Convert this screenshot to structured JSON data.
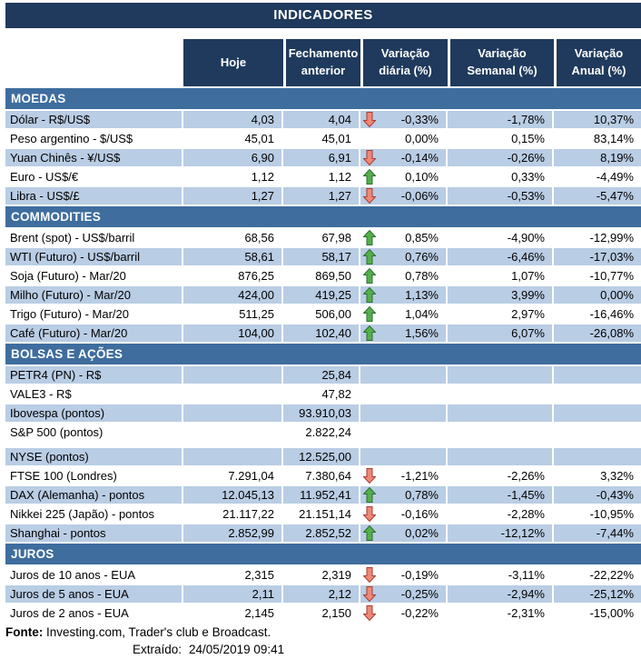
{
  "title": "INDICADORES",
  "chart_data": {
    "type": "table",
    "title": "INDICADORES",
    "columns": [
      "Hoje",
      "Fechamento anterior",
      "Variação diária (%)",
      "Variação Semanal (%)",
      "Variação Anual (%)"
    ],
    "sections": [
      {
        "name": "MOEDAS",
        "rows": [
          {
            "label": "Dólar - R$/US$",
            "hoje": "4,03",
            "fechamento": "4,04",
            "arrow": "down",
            "diaria": "-0,33%",
            "semanal": "-1,78%",
            "anual": "10,37%"
          },
          {
            "label": "Peso argentino - $/US$",
            "hoje": "45,01",
            "fechamento": "45,01",
            "arrow": "",
            "diaria": "0,00%",
            "semanal": "0,15%",
            "anual": "83,14%"
          },
          {
            "label": "Yuan Chinês - ¥/US$",
            "hoje": "6,90",
            "fechamento": "6,91",
            "arrow": "down",
            "diaria": "-0,14%",
            "semanal": "-0,26%",
            "anual": "8,19%"
          },
          {
            "label": "Euro - US$/€",
            "hoje": "1,12",
            "fechamento": "1,12",
            "arrow": "up",
            "diaria": "0,10%",
            "semanal": "0,33%",
            "anual": "-4,49%"
          },
          {
            "label": "Libra - US$/£",
            "hoje": "1,27",
            "fechamento": "1,27",
            "arrow": "down",
            "diaria": "-0,06%",
            "semanal": "-0,53%",
            "anual": "-5,47%"
          }
        ]
      },
      {
        "name": "COMMODITIES",
        "rows": [
          {
            "label": "Brent (spot) - US$/barril",
            "hoje": "68,56",
            "fechamento": "67,98",
            "arrow": "up",
            "diaria": "0,85%",
            "semanal": "-4,90%",
            "anual": "-12,99%"
          },
          {
            "label": "WTI (Futuro) - US$/barril",
            "hoje": "58,61",
            "fechamento": "58,17",
            "arrow": "up",
            "diaria": "0,76%",
            "semanal": "-6,46%",
            "anual": "-17,03%"
          },
          {
            "label": "Soja (Futuro) - Mar/20",
            "hoje": "876,25",
            "fechamento": "869,50",
            "arrow": "up",
            "diaria": "0,78%",
            "semanal": "1,07%",
            "anual": "-10,77%"
          },
          {
            "label": "Milho (Futuro) - Mar/20",
            "hoje": "424,00",
            "fechamento": "419,25",
            "arrow": "up",
            "diaria": "1,13%",
            "semanal": "3,99%",
            "anual": "0,00%"
          },
          {
            "label": "Trigo (Futuro) - Mar/20",
            "hoje": "511,25",
            "fechamento": "506,00",
            "arrow": "up",
            "diaria": "1,04%",
            "semanal": "2,97%",
            "anual": "-16,46%"
          },
          {
            "label": "Café (Futuro) - Mar/20",
            "hoje": "104,00",
            "fechamento": "102,40",
            "arrow": "up",
            "diaria": "1,56%",
            "semanal": "6,07%",
            "anual": "-26,08%"
          }
        ]
      },
      {
        "name": "BOLSAS E AÇÕES",
        "rows": [
          {
            "label": "PETR4 (PN) - R$",
            "hoje": "",
            "fechamento": "25,84",
            "arrow": "",
            "diaria": "",
            "semanal": "",
            "anual": ""
          },
          {
            "label": "VALE3 - R$",
            "hoje": "",
            "fechamento": "47,82",
            "arrow": "",
            "diaria": "",
            "semanal": "",
            "anual": ""
          },
          {
            "label": "Ibovespa (pontos)",
            "hoje": "",
            "fechamento": "93.910,03",
            "arrow": "",
            "diaria": "",
            "semanal": "",
            "anual": ""
          },
          {
            "label": "S&P 500 (pontos)",
            "hoje": "",
            "fechamento": "2.822,24",
            "arrow": "",
            "diaria": "",
            "semanal": "",
            "anual": "",
            "gap_after": true
          },
          {
            "label": "NYSE (pontos)",
            "hoje": "",
            "fechamento": "12.525,00",
            "arrow": "",
            "diaria": "",
            "semanal": "",
            "anual": ""
          },
          {
            "label": "FTSE 100 (Londres)",
            "hoje": "7.291,04",
            "fechamento": "7.380,64",
            "arrow": "down",
            "diaria": "-1,21%",
            "semanal": "-2,26%",
            "anual": "3,32%"
          },
          {
            "label": "DAX (Alemanha) - pontos",
            "hoje": "12.045,13",
            "fechamento": "11.952,41",
            "arrow": "up",
            "diaria": "0,78%",
            "semanal": "-1,45%",
            "anual": "-0,43%"
          },
          {
            "label": "Nikkei 225 (Japão) - pontos",
            "hoje": "21.117,22",
            "fechamento": "21.151,14",
            "arrow": "down",
            "diaria": "-0,16%",
            "semanal": "-2,28%",
            "anual": "-10,95%"
          },
          {
            "label": "Shanghai - pontos",
            "hoje": "2.852,99",
            "fechamento": "2.852,52",
            "arrow": "up",
            "diaria": "0,02%",
            "semanal": "-12,12%",
            "anual": "-7,44%"
          }
        ]
      },
      {
        "name": "JUROS",
        "rows": [
          {
            "label": "Juros de 10 anos - EUA",
            "hoje": "2,315",
            "fechamento": "2,319",
            "arrow": "down",
            "diaria": "-0,19%",
            "semanal": "-3,11%",
            "anual": "-22,22%"
          },
          {
            "label": "Juros de 5 anos - EUA",
            "hoje": "2,11",
            "fechamento": "2,12",
            "arrow": "down",
            "diaria": "-0,25%",
            "semanal": "-2,94%",
            "anual": "-25,12%"
          },
          {
            "label": "Juros de 2 anos - EUA",
            "hoje": "2,145",
            "fechamento": "2,150",
            "arrow": "down",
            "diaria": "-0,22%",
            "semanal": "-2,31%",
            "anual": "-15,00%"
          }
        ]
      }
    ]
  },
  "footer": {
    "fonte_label": "Fonte:",
    "fonte_text": " Investing.com, Trader's club e Broadcast.",
    "extraido_label": "Extraído:",
    "extraido_value": "24/05/2019 09:41"
  },
  "colors": {
    "navy": "#1F3A5C",
    "steel": "#3E6D9E",
    "stripe": "#B9CDE4",
    "arrow_up_fill": "#55AE4B",
    "arrow_up_stroke": "#2E7030",
    "arrow_down_fill": "#EE8877",
    "arrow_down_stroke": "#A93C31"
  }
}
